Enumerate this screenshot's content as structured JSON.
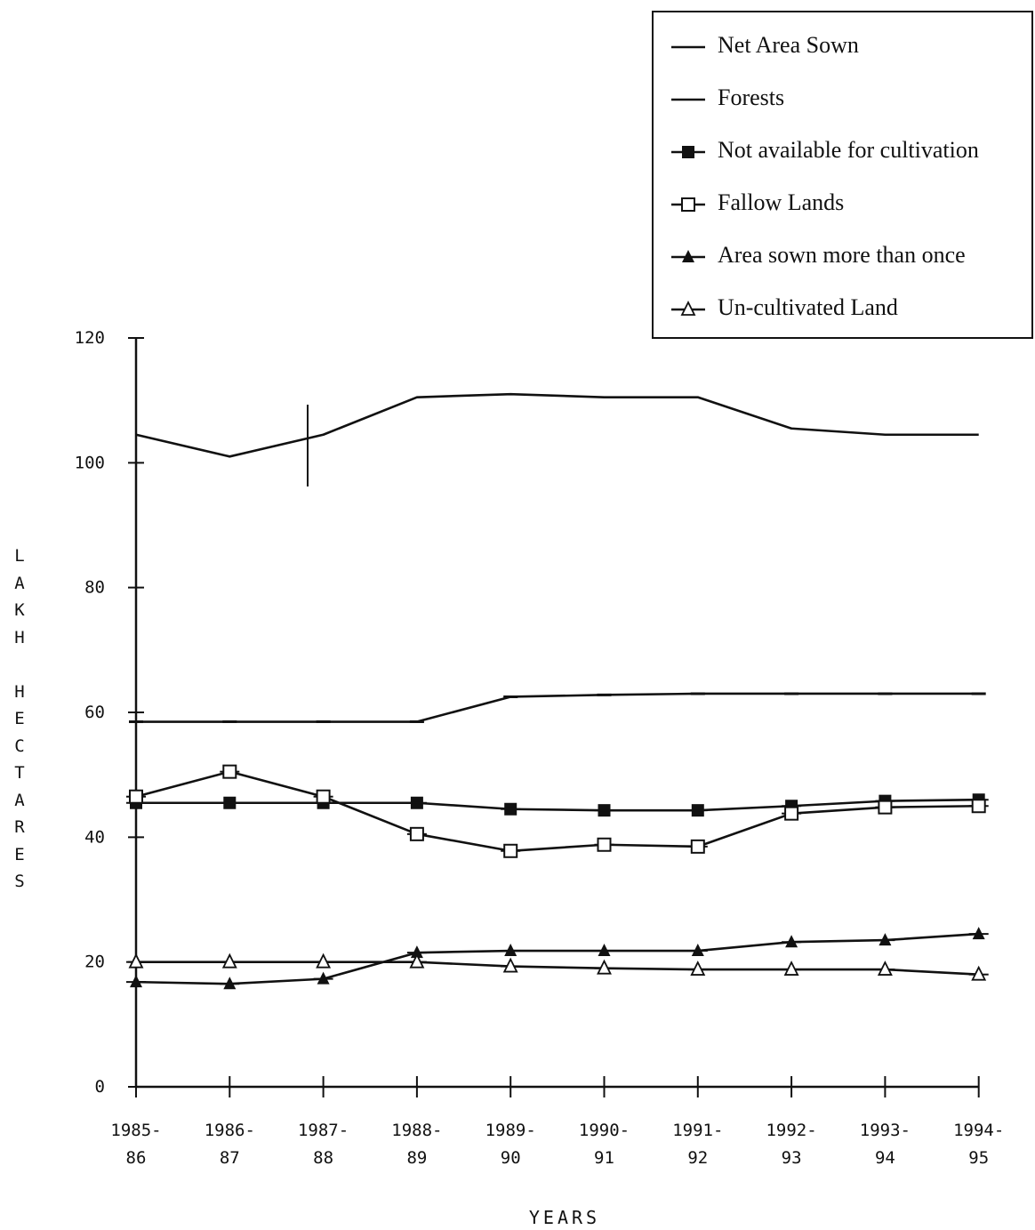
{
  "chart_data": {
    "type": "line",
    "xlabel": "YEARS",
    "ylabel": "LAKH HECTARES",
    "ylim": [
      0,
      120
    ],
    "yticks": [
      0,
      20,
      40,
      60,
      80,
      100,
      120
    ],
    "grid": false,
    "legend_position": "top-right",
    "categories": [
      [
        "1985-",
        "86"
      ],
      [
        "1986-",
        "87"
      ],
      [
        "1987-",
        "88"
      ],
      [
        "1988-",
        "89"
      ],
      [
        "1989-",
        "90"
      ],
      [
        "1990-",
        "91"
      ],
      [
        "1991-",
        "92"
      ],
      [
        "1992-",
        "93"
      ],
      [
        "1993-",
        "94"
      ],
      [
        "1994-",
        "95"
      ]
    ],
    "series": [
      {
        "name": "Net Area Sown",
        "marker": "none",
        "values": [
          104.5,
          101,
          104.5,
          110.5,
          111,
          110.5,
          110.5,
          105.5,
          104.5,
          104.5
        ]
      },
      {
        "name": "Forests",
        "marker": "dash",
        "values": [
          58.5,
          58.5,
          58.5,
          58.5,
          62.5,
          62.8,
          63,
          63,
          63,
          63
        ]
      },
      {
        "name": "Not available for cultivation",
        "marker": "filled-square",
        "values": [
          45.5,
          45.5,
          45.5,
          45.5,
          44.5,
          44.3,
          44.3,
          45,
          45.8,
          46
        ]
      },
      {
        "name": "Fallow Lands",
        "marker": "open-square",
        "values": [
          46.5,
          50.5,
          46.5,
          40.5,
          37.8,
          38.8,
          38.5,
          43.8,
          44.8,
          45
        ]
      },
      {
        "name": "Area sown more than once",
        "marker": "filled-triangle",
        "values": [
          16.8,
          16.5,
          17.3,
          21.5,
          21.8,
          21.8,
          21.8,
          23.2,
          23.5,
          24.5
        ]
      },
      {
        "name": "Un-cultivated Land",
        "marker": "open-triangle",
        "values": [
          20,
          20,
          20,
          20,
          19.3,
          19,
          18.8,
          18.8,
          18.8,
          18
        ]
      }
    ]
  }
}
